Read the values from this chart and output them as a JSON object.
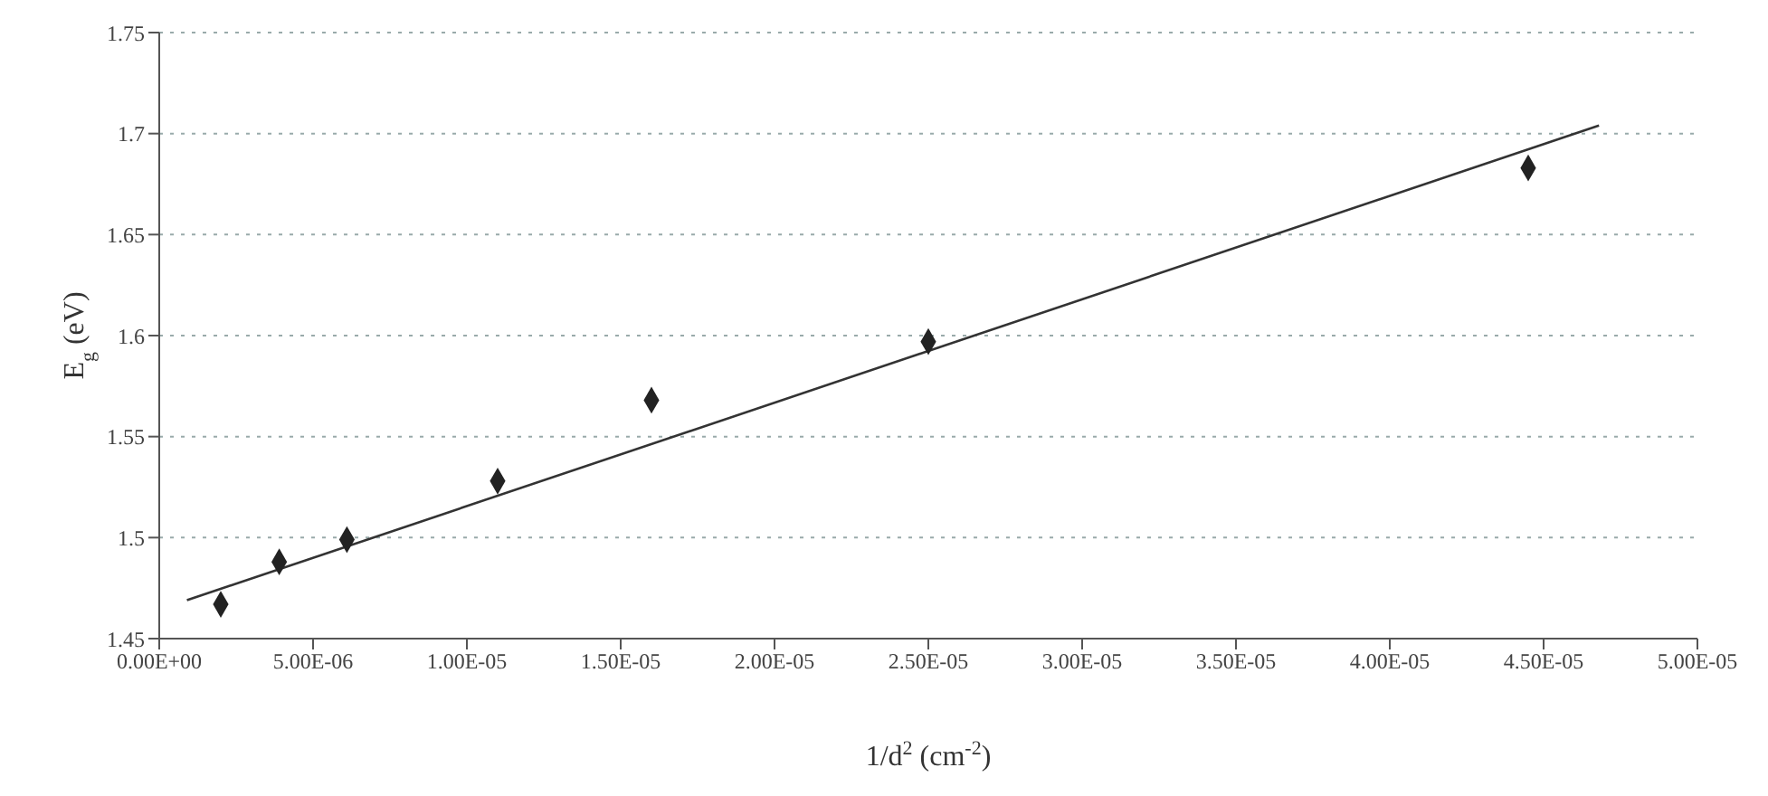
{
  "chart_data": {
    "type": "scatter",
    "xlabel": "1/d$^{2}$ (cm$^{-2}$)",
    "ylabel": "E$_{g}$ (eV)",
    "x": [
      2e-06,
      3.9e-06,
      6.1e-06,
      1.1e-05,
      1.6e-05,
      2.5e-05,
      4.45e-05
    ],
    "series": [
      {
        "color": "#222222",
        "values": [
          1.467,
          1.488,
          1.499,
          1.528,
          1.568,
          1.597,
          1.683
        ],
        "marker": "diamond"
      },
      {
        "type": "line",
        "color": "#333333",
        "x": [
          9e-07,
          4.68e-05
        ],
        "values": [
          1.469,
          1.704
        ],
        "marker": "none",
        "line_style": "solid"
      }
    ],
    "xlim": [
      0,
      5e-05
    ],
    "xticks": [
      {
        "value": 0,
        "label": "0.00E+00"
      },
      {
        "value": 5e-06,
        "label": "5.00E-06"
      },
      {
        "value": 1e-05,
        "label": "1.00E-05"
      },
      {
        "value": 1.5e-05,
        "label": "1.50E-05"
      },
      {
        "value": 2e-05,
        "label": "2.00E-05"
      },
      {
        "value": 2.5e-05,
        "label": "2.50E-05"
      },
      {
        "value": 3e-05,
        "label": "3.00E-05"
      },
      {
        "value": 3.5e-05,
        "label": "3.50E-05"
      },
      {
        "value": 4e-05,
        "label": "4.00E-05"
      },
      {
        "value": 4.5e-05,
        "label": "4.50E-05"
      },
      {
        "value": 5e-05,
        "label": "5.00E-05"
      }
    ],
    "ylim": [
      1.45,
      1.75
    ],
    "yticks": [
      1.45,
      1.5,
      1.55,
      1.6,
      1.65,
      1.7,
      1.75
    ],
    "grid": "y"
  }
}
